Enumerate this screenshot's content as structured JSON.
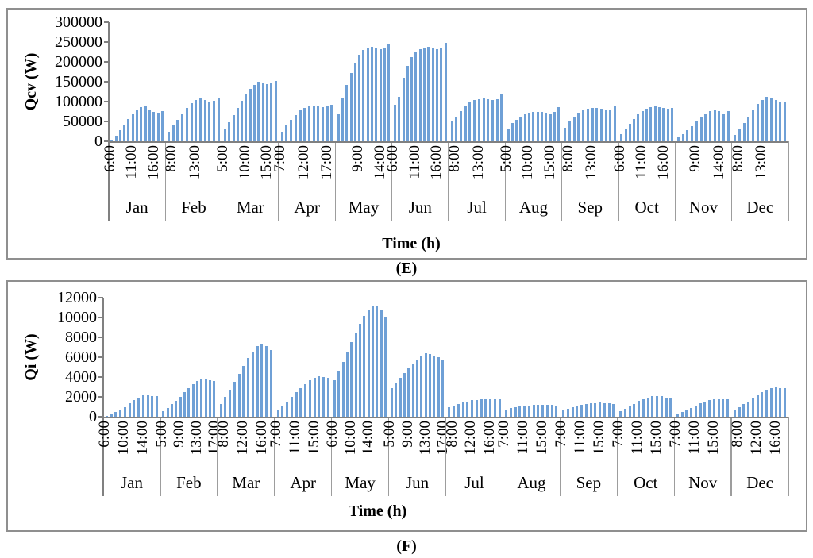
{
  "figure": {
    "captions": {
      "e": "(E)",
      "f": "(F)"
    }
  },
  "chart_data": [
    {
      "id": "E",
      "type": "bar",
      "title": "",
      "ylabel": "Qcv (W)",
      "xlabel": "Time (h)",
      "ylim": [
        0,
        300000
      ],
      "ytick_interval": 50000,
      "yticks": [
        "300000",
        "250000",
        "200000",
        "150000",
        "100000",
        "50000",
        "0"
      ],
      "bar_color": "#6FA0D6",
      "grid": "off",
      "legend": "none",
      "months": [
        {
          "label": "Jan",
          "ticks": [
            {
              "t": "6:00",
              "i": 0
            },
            {
              "t": "11:00",
              "i": 5
            },
            {
              "t": "16:00",
              "i": 10
            }
          ],
          "values": [
            5000,
            15000,
            28000,
            42000,
            56000,
            70000,
            80000,
            86000,
            88000,
            80000,
            74000,
            73000,
            76000
          ]
        },
        {
          "label": "Feb",
          "ticks": [
            {
              "t": "8:00",
              "i": 1
            },
            {
              "t": "13:00",
              "i": 6
            }
          ],
          "values": [
            25000,
            40000,
            55000,
            70000,
            85000,
            97000,
            105000,
            109000,
            104000,
            100000,
            103000,
            110000
          ]
        },
        {
          "label": "Mar",
          "ticks": [
            {
              "t": "5:00",
              "i": 0
            },
            {
              "t": "10:00",
              "i": 5
            },
            {
              "t": "15:00",
              "i": 10
            }
          ],
          "values": [
            30000,
            48000,
            66000,
            84000,
            102000,
            118000,
            132000,
            142000,
            150000,
            147000,
            144000,
            146000,
            152000
          ]
        },
        {
          "label": "Apr",
          "ticks": [
            {
              "t": "7:00",
              "i": 0
            },
            {
              "t": "12:00",
              "i": 5
            },
            {
              "t": "17:00",
              "i": 10
            }
          ],
          "values": [
            25000,
            40000,
            54000,
            67000,
            78000,
            85000,
            89000,
            90000,
            88000,
            86000,
            88000,
            92000
          ]
        },
        {
          "label": "May",
          "ticks": [
            {
              "t": "9:00",
              "i": 5
            },
            {
              "t": "14:00",
              "i": 10
            }
          ],
          "values": [
            70000,
            110000,
            143000,
            172000,
            196000,
            218000,
            230000,
            236000,
            239000,
            235000,
            233000,
            236000,
            245000
          ]
        },
        {
          "label": "Jun",
          "ticks": [
            {
              "t": "6:00",
              "i": 0
            },
            {
              "t": "11:00",
              "i": 5
            },
            {
              "t": "16:00",
              "i": 10
            }
          ],
          "values": [
            93000,
            112000,
            160000,
            190000,
            212000,
            227000,
            233000,
            237000,
            239000,
            236000,
            233000,
            237000,
            248000
          ]
        },
        {
          "label": "Jul",
          "ticks": [
            {
              "t": "8:00",
              "i": 1
            },
            {
              "t": "13:00",
              "i": 6
            }
          ],
          "values": [
            50000,
            63000,
            76000,
            88000,
            98000,
            104000,
            107000,
            108000,
            106000,
            104000,
            107000,
            118000
          ]
        },
        {
          "label": "Aug",
          "ticks": [
            {
              "t": "5:00",
              "i": 0
            },
            {
              "t": "10:00",
              "i": 5
            },
            {
              "t": "15:00",
              "i": 10
            }
          ],
          "values": [
            30000,
            46000,
            55000,
            62000,
            68000,
            72000,
            74000,
            75000,
            74000,
            72000,
            71000,
            74000,
            87000
          ]
        },
        {
          "label": "Sep",
          "ticks": [
            {
              "t": "8:00",
              "i": 1
            },
            {
              "t": "13:00",
              "i": 6
            }
          ],
          "values": [
            35000,
            50000,
            62000,
            72000,
            78000,
            82000,
            84000,
            85000,
            83000,
            81000,
            80000,
            88000
          ]
        },
        {
          "label": "Oct",
          "ticks": [
            {
              "t": "6:00",
              "i": 0
            },
            {
              "t": "11:00",
              "i": 5
            },
            {
              "t": "16:00",
              "i": 10
            }
          ],
          "values": [
            18000,
            30000,
            44000,
            57000,
            68000,
            77000,
            83000,
            87000,
            88000,
            87000,
            85000,
            83000,
            84000
          ]
        },
        {
          "label": "Nov",
          "ticks": [
            {
              "t": "9:00",
              "i": 4
            },
            {
              "t": "14:00",
              "i": 9
            }
          ],
          "values": [
            10000,
            18000,
            28000,
            38000,
            50000,
            61000,
            69000,
            76000,
            80000,
            76000,
            71000,
            76000
          ]
        },
        {
          "label": "Dec",
          "ticks": [
            {
              "t": "8:00",
              "i": 1
            },
            {
              "t": "13:00",
              "i": 6
            }
          ],
          "values": [
            17000,
            30000,
            46000,
            62000,
            79000,
            94000,
            105000,
            112000,
            108000,
            104000,
            101000,
            99000
          ]
        }
      ]
    },
    {
      "id": "F",
      "type": "bar",
      "title": "",
      "ylabel": "Qi (W)",
      "xlabel": "Time (h)",
      "ylim": [
        0,
        12000
      ],
      "ytick_interval": 2000,
      "yticks": [
        "12000",
        "10000",
        "8000",
        "6000",
        "4000",
        "2000",
        "0"
      ],
      "bar_color": "#6FA0D6",
      "grid": "off",
      "legend": "none",
      "months": [
        {
          "label": "Jan",
          "ticks": [
            {
              "t": "6:00",
              "i": 0
            },
            {
              "t": "10:00",
              "i": 4
            },
            {
              "t": "14:00",
              "i": 8
            }
          ],
          "values": [
            100,
            250,
            450,
            700,
            1000,
            1350,
            1700,
            1950,
            2150,
            2200,
            2100,
            2050
          ]
        },
        {
          "label": "Feb",
          "ticks": [
            {
              "t": "5:00",
              "i": 0
            },
            {
              "t": "9:00",
              "i": 4
            },
            {
              "t": "13:00",
              "i": 8
            },
            {
              "t": "17:00",
              "i": 12
            }
          ],
          "values": [
            600,
            900,
            1250,
            1600,
            2000,
            2450,
            2900,
            3300,
            3600,
            3800,
            3750,
            3650,
            3600
          ]
        },
        {
          "label": "Mar",
          "ticks": [
            {
              "t": "8:00",
              "i": 1
            },
            {
              "t": "12:00",
              "i": 5
            },
            {
              "t": "16:00",
              "i": 9
            }
          ],
          "values": [
            1300,
            2000,
            2750,
            3500,
            4300,
            5100,
            5900,
            6600,
            7100,
            7300,
            7100,
            6700
          ]
        },
        {
          "label": "Apr",
          "ticks": [
            {
              "t": "7:00",
              "i": 0
            },
            {
              "t": "11:00",
              "i": 4
            },
            {
              "t": "15:00",
              "i": 8
            }
          ],
          "values": [
            700,
            1100,
            1550,
            2000,
            2450,
            2900,
            3300,
            3650,
            3900,
            4050,
            4000,
            3900
          ]
        },
        {
          "label": "May",
          "ticks": [
            {
              "t": "6:00",
              "i": 0
            },
            {
              "t": "10:00",
              "i": 4
            },
            {
              "t": "14:00",
              "i": 8
            }
          ],
          "values": [
            3700,
            4600,
            5500,
            6500,
            7500,
            8500,
            9400,
            10200,
            10800,
            11200,
            11100,
            10800,
            10000
          ]
        },
        {
          "label": "Jun",
          "ticks": [
            {
              "t": "5:00",
              "i": 0
            },
            {
              "t": "9:00",
              "i": 4
            },
            {
              "t": "13:00",
              "i": 8
            },
            {
              "t": "17:00",
              "i": 12
            }
          ],
          "values": [
            2900,
            3400,
            3900,
            4400,
            4900,
            5400,
            5800,
            6150,
            6400,
            6350,
            6200,
            6000,
            5800
          ]
        },
        {
          "label": "Jul",
          "ticks": [
            {
              "t": "8:00",
              "i": 1
            },
            {
              "t": "12:00",
              "i": 5
            },
            {
              "t": "16:00",
              "i": 9
            }
          ],
          "values": [
            1000,
            1150,
            1300,
            1450,
            1550,
            1650,
            1700,
            1750,
            1780,
            1760,
            1740,
            1750
          ]
        },
        {
          "label": "Aug",
          "ticks": [
            {
              "t": "7:00",
              "i": 0
            },
            {
              "t": "11:00",
              "i": 4
            },
            {
              "t": "15:00",
              "i": 8
            }
          ],
          "values": [
            750,
            850,
            950,
            1030,
            1100,
            1150,
            1190,
            1220,
            1240,
            1220,
            1180,
            1100
          ]
        },
        {
          "label": "Sep",
          "ticks": [
            {
              "t": "7:00",
              "i": 0
            },
            {
              "t": "11:00",
              "i": 4
            },
            {
              "t": "15:00",
              "i": 8
            }
          ],
          "values": [
            650,
            800,
            950,
            1100,
            1200,
            1280,
            1350,
            1400,
            1420,
            1400,
            1350,
            1300
          ]
        },
        {
          "label": "Oct",
          "ticks": [
            {
              "t": "7:00",
              "i": 0
            },
            {
              "t": "11:00",
              "i": 4
            },
            {
              "t": "15:00",
              "i": 8
            }
          ],
          "values": [
            600,
            800,
            1050,
            1300,
            1600,
            1800,
            1950,
            2050,
            2080,
            2050,
            1950,
            1900
          ]
        },
        {
          "label": "Nov",
          "ticks": [
            {
              "t": "7:00",
              "i": 0
            },
            {
              "t": "11:00",
              "i": 4
            },
            {
              "t": "15:00",
              "i": 8
            }
          ],
          "values": [
            300,
            450,
            650,
            900,
            1150,
            1350,
            1550,
            1700,
            1780,
            1800,
            1780,
            1750
          ]
        },
        {
          "label": "Dec",
          "ticks": [
            {
              "t": "8:00",
              "i": 1
            },
            {
              "t": "12:00",
              "i": 5
            },
            {
              "t": "16:00",
              "i": 9
            }
          ],
          "values": [
            700,
            950,
            1250,
            1550,
            1850,
            2150,
            2450,
            2700,
            2870,
            2950,
            2900,
            2850
          ]
        }
      ]
    }
  ]
}
